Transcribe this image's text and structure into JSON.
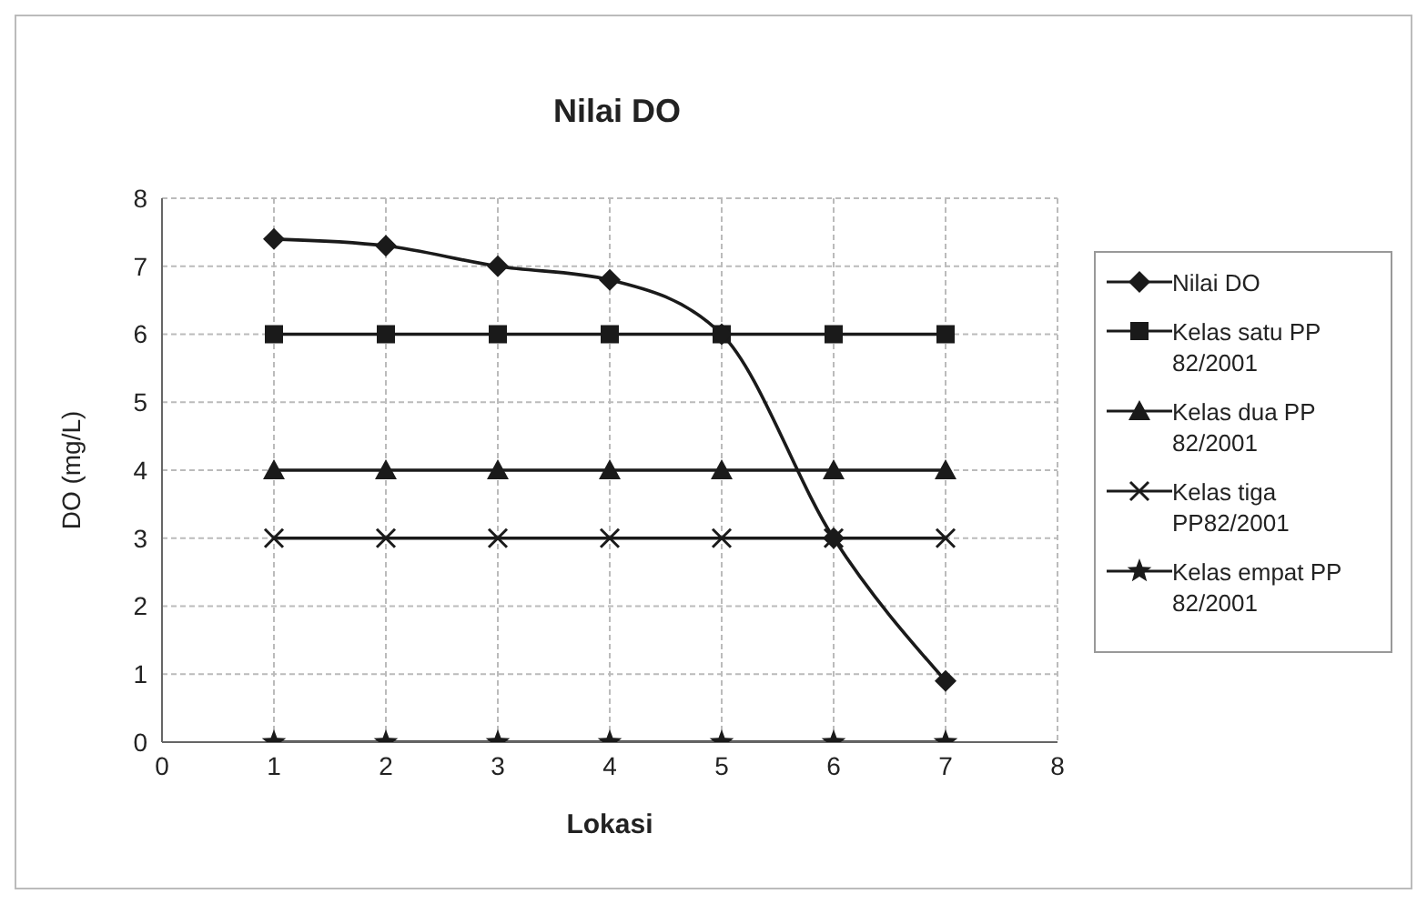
{
  "chart_data": {
    "type": "line",
    "title": "Nilai DO",
    "xlabel": "Lokasi",
    "ylabel": "DO (mg/L)",
    "x": [
      1,
      2,
      3,
      4,
      5,
      6,
      7
    ],
    "xlim": [
      0,
      8
    ],
    "xticks": [
      0,
      1,
      2,
      3,
      4,
      5,
      6,
      7,
      8
    ],
    "ylim": [
      0,
      8
    ],
    "yticks": [
      0,
      1,
      2,
      3,
      4,
      5,
      6,
      7,
      8
    ],
    "grid": true,
    "legend": "right",
    "series": [
      {
        "name": "Nilai DO",
        "color": "#1a1a1a",
        "marker": "diamond",
        "values": [
          7.4,
          7.3,
          7.0,
          6.8,
          6.0,
          3.0,
          0.9
        ]
      },
      {
        "name": "Kelas satu PP 82/2001",
        "color": "#1a1a1a",
        "marker": "square",
        "values": [
          6,
          6,
          6,
          6,
          6,
          6,
          6
        ]
      },
      {
        "name": "Kelas dua PP 82/2001",
        "color": "#1a1a1a",
        "marker": "triangle",
        "values": [
          4,
          4,
          4,
          4,
          4,
          4,
          4
        ]
      },
      {
        "name": "Kelas tiga PP82/2001",
        "color": "#1a1a1a",
        "marker": "cross",
        "values": [
          3,
          3,
          3,
          3,
          3,
          3,
          3
        ]
      },
      {
        "name": "Kelas empat PP 82/2001",
        "color": "#1a1a1a",
        "marker": "star",
        "values": [
          0,
          0,
          0,
          0,
          0,
          0,
          0
        ]
      }
    ]
  }
}
